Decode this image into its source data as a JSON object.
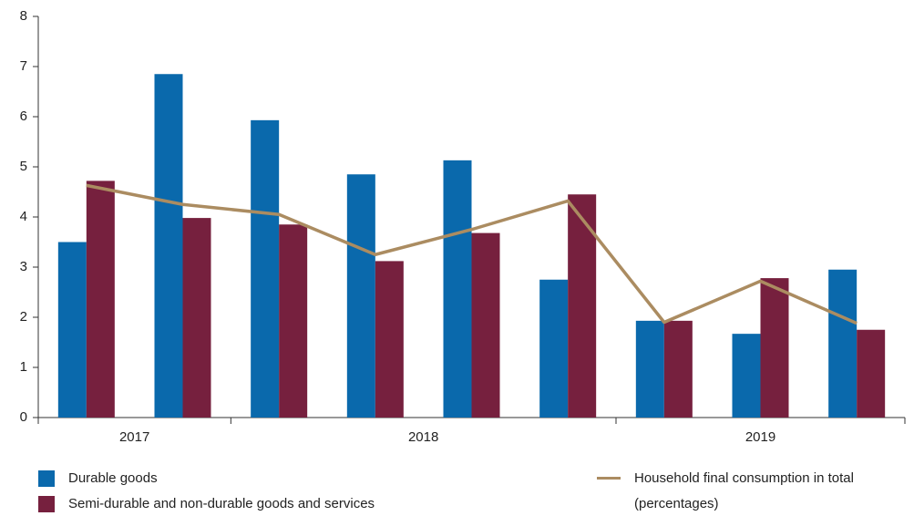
{
  "chart_data": {
    "type": "bar",
    "categories": [
      "2017",
      null,
      "2018",
      null,
      null,
      null,
      "2019",
      null,
      null
    ],
    "series": [
      {
        "name": "Durable goods",
        "type": "bar",
        "color": "#0a69ac",
        "values": [
          3.5,
          6.85,
          5.93,
          4.85,
          5.13,
          2.75,
          1.93,
          1.67,
          2.95
        ]
      },
      {
        "name": "Semi-durable and non-durable goods and services",
        "type": "bar",
        "color": "#76203e",
        "values": [
          4.72,
          3.98,
          3.85,
          3.12,
          3.68,
          4.45,
          1.93,
          2.78,
          1.75
        ]
      },
      {
        "name": "Household final consumption in total (percentages)",
        "type": "line",
        "color": "#ab8c61",
        "values": [
          4.63,
          4.25,
          4.05,
          3.25,
          3.75,
          4.32,
          1.9,
          2.72,
          1.88
        ]
      }
    ],
    "ylim": [
      0,
      8
    ],
    "yticks": [
      0,
      1,
      2,
      3,
      4,
      5,
      6,
      7,
      8
    ]
  }
}
